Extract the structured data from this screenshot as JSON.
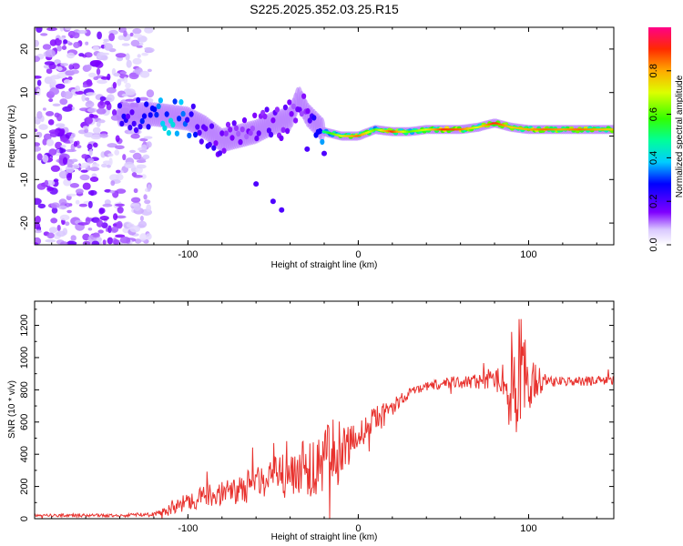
{
  "title": "S225.2025.352.03.25.R15",
  "chart_data": [
    {
      "type": "heatmap",
      "name": "spectrogram",
      "xlabel": "Height of straight line (km)",
      "ylabel": "Frequency (Hz)",
      "xlim": [
        -190,
        150
      ],
      "ylim": [
        -25,
        25
      ],
      "xticks": [
        -100,
        0,
        100
      ],
      "yticks": [
        -20,
        -10,
        0,
        10,
        20
      ],
      "colorbar": {
        "label": "Normalized spectral amplitude",
        "range": [
          0,
          1
        ],
        "ticks": [
          "0.0",
          "0.2",
          "0.4",
          "0.6",
          "0.8"
        ]
      },
      "ridge": {
        "description_points_x": [
          -140,
          -130,
          -120,
          -110,
          -100,
          -90,
          -80,
          -70,
          -60,
          -50,
          -40,
          -35,
          -30,
          -20,
          -10,
          0,
          10,
          20,
          30,
          40,
          50,
          60,
          70,
          80,
          90,
          100,
          110,
          120,
          130,
          140,
          150
        ],
        "frequency": [
          5,
          5,
          5,
          4.5,
          4,
          2,
          -1,
          0,
          1,
          3,
          4,
          9,
          5,
          1,
          0,
          0,
          1.5,
          1,
          1,
          1.5,
          1.5,
          1.5,
          2,
          3,
          2,
          1.5,
          1.5,
          1.5,
          1.5,
          1.5,
          1.5
        ],
        "amplitude": [
          0.3,
          0.3,
          0.45,
          0.55,
          0.4,
          0.3,
          0.25,
          0.2,
          0.2,
          0.25,
          0.2,
          0.2,
          0.2,
          0.5,
          0.7,
          0.85,
          0.6,
          0.9,
          0.6,
          0.7,
          0.9,
          0.85,
          0.7,
          0.9,
          0.75,
          0.8,
          0.85,
          0.8,
          0.85,
          0.8,
          0.75
        ]
      }
    },
    {
      "type": "line",
      "name": "snr",
      "xlabel": "Height of straight line (km)",
      "ylabel": "SNR (10 * v/v)",
      "xlim": [
        -190,
        150
      ],
      "ylim": [
        0,
        1350
      ],
      "xticks": [
        -100,
        0,
        100
      ],
      "yticks": [
        0,
        200,
        400,
        600,
        800,
        1000,
        1200
      ],
      "color": "#e8322e",
      "envelope": {
        "x": [
          -190,
          -160,
          -140,
          -120,
          -110,
          -100,
          -90,
          -80,
          -70,
          -60,
          -50,
          -40,
          -30,
          -20,
          -15,
          -10,
          -5,
          0,
          5,
          10,
          15,
          20,
          25,
          30,
          40,
          50,
          60,
          70,
          80,
          85,
          90,
          95,
          100,
          110,
          120,
          130,
          140,
          150
        ],
        "mean": [
          20,
          20,
          20,
          25,
          60,
          110,
          140,
          160,
          180,
          220,
          250,
          280,
          320,
          360,
          380,
          420,
          450,
          520,
          560,
          600,
          640,
          700,
          740,
          780,
          820,
          840,
          850,
          850,
          860,
          860,
          850,
          850,
          860,
          860,
          850,
          850,
          860,
          860
        ],
        "spread": [
          10,
          10,
          10,
          15,
          40,
          60,
          70,
          80,
          90,
          110,
          130,
          160,
          200,
          220,
          240,
          200,
          120,
          80,
          90,
          100,
          80,
          60,
          40,
          30,
          30,
          35,
          40,
          50,
          60,
          120,
          350,
          420,
          200,
          40,
          30,
          30,
          30,
          30
        ]
      }
    }
  ]
}
